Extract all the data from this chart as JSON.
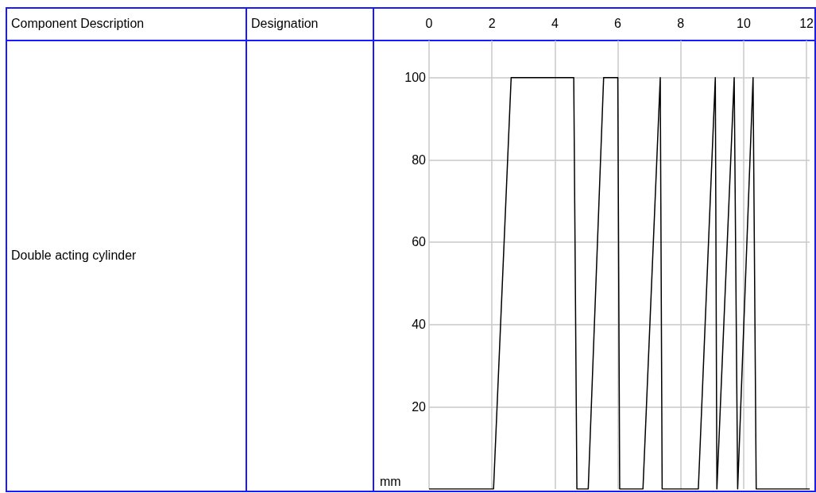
{
  "chart_data": {
    "type": "line",
    "annotations": [
      "Component Description",
      "Designation",
      "Double acting cylinder"
    ],
    "ylabel": "mm",
    "x": [
      0,
      2.05,
      2.61,
      4.6,
      4.7,
      5.06,
      5.55,
      6.0,
      6.06,
      6.8,
      7.35,
      7.41,
      8.56,
      9.1,
      9.15,
      9.7,
      9.81,
      10.3,
      10.4,
      12.1
    ],
    "series": [
      {
        "color": "#000000",
        "values": [
          0,
          0,
          100,
          100,
          0,
          0,
          100,
          100,
          0,
          0,
          100,
          0,
          0,
          100,
          0,
          100,
          0,
          100,
          0,
          0
        ]
      }
    ],
    "xlim": [
      0,
      12.1
    ],
    "xticks": [
      0,
      2,
      4,
      6,
      8,
      10,
      12
    ],
    "ylim": [
      0,
      109
    ],
    "yticks": [
      20,
      40,
      60,
      80,
      100
    ],
    "grid": true
  }
}
